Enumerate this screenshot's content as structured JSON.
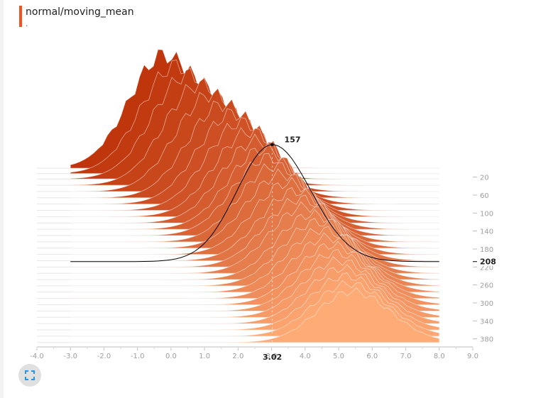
{
  "header": {
    "title": "normal/moving_mean",
    "subtitle": ".",
    "accent_color": "#f4511e"
  },
  "chart_data": {
    "type": "area",
    "mode": "offset",
    "x_ticks": [
      -4.0,
      -3.0,
      -2.0,
      -1.0,
      0.0,
      1.0,
      2.0,
      3.0,
      4.0,
      5.0,
      6.0,
      7.0,
      8.0,
      9.0
    ],
    "x_tick_labels": [
      "-4.0",
      "-3.0",
      "-2.0",
      "-1.0",
      "0.0",
      "1.0",
      "2.0",
      "3.0",
      "4.0",
      "5.0",
      "6.0",
      "7.0",
      "8.0",
      "9.0"
    ],
    "xlim": [
      -4.0,
      9.0
    ],
    "step_ticks": [
      20,
      60,
      100,
      140,
      180,
      220,
      260,
      300,
      340,
      380
    ],
    "step_tick_labels": [
      "20",
      "60",
      "100",
      "140",
      "180",
      "220",
      "260",
      "300",
      "340",
      "380"
    ],
    "step_range": [
      0,
      390
    ],
    "color_start": "#bf360c",
    "color_end": "#ffab76",
    "hover": {
      "step": 208,
      "step_label": "208",
      "x": 3.02,
      "x_label": "3.02",
      "peak_count": 157,
      "peak_label": "157"
    },
    "series": [
      {
        "step": 0,
        "center": -0.2,
        "height": 160
      },
      {
        "step": 12,
        "center": 0.15,
        "height": 152
      },
      {
        "step": 24,
        "center": 0.5,
        "height": 147
      },
      {
        "step": 38,
        "center": 0.85,
        "height": 142
      },
      {
        "step": 52,
        "center": 1.2,
        "height": 137
      },
      {
        "step": 66,
        "center": 1.55,
        "height": 132
      },
      {
        "step": 80,
        "center": 1.85,
        "height": 128
      },
      {
        "step": 94,
        "center": 2.1,
        "height": 124
      },
      {
        "step": 108,
        "center": 2.35,
        "height": 120
      },
      {
        "step": 122,
        "center": 2.55,
        "height": 116
      },
      {
        "step": 136,
        "center": 2.75,
        "height": 113
      },
      {
        "step": 150,
        "center": 2.9,
        "height": 110
      },
      {
        "step": 164,
        "center": 3.1,
        "height": 107
      },
      {
        "step": 178,
        "center": 3.3,
        "height": 104
      },
      {
        "step": 192,
        "center": 3.5,
        "height": 101
      },
      {
        "step": 206,
        "center": 3.7,
        "height": 98
      },
      {
        "step": 220,
        "center": 3.85,
        "height": 96
      },
      {
        "step": 234,
        "center": 4.0,
        "height": 94
      },
      {
        "step": 248,
        "center": 4.2,
        "height": 92
      },
      {
        "step": 262,
        "center": 4.35,
        "height": 90
      },
      {
        "step": 276,
        "center": 4.5,
        "height": 88
      },
      {
        "step": 290,
        "center": 4.65,
        "height": 86
      },
      {
        "step": 304,
        "center": 4.8,
        "height": 84
      },
      {
        "step": 318,
        "center": 4.9,
        "height": 82
      },
      {
        "step": 332,
        "center": 5.0,
        "height": 80
      },
      {
        "step": 346,
        "center": 5.1,
        "height": 78
      },
      {
        "step": 360,
        "center": 5.2,
        "height": 76
      },
      {
        "step": 374,
        "center": 5.3,
        "height": 74
      },
      {
        "step": 388,
        "center": 5.4,
        "height": 72
      }
    ]
  },
  "controls": {
    "expand_icon": "fullscreen-icon"
  }
}
